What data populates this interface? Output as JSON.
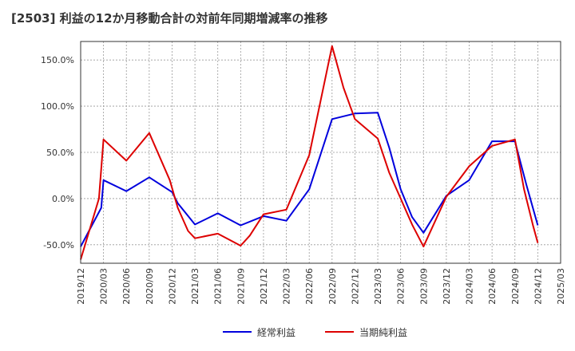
{
  "chart_data": {
    "type": "line",
    "title": "[2503]  利益の12か月移動合計の対前年同期増減率の推移",
    "xlabel": "",
    "ylabel": "",
    "ylim": [
      -70,
      170
    ],
    "y_ticks": [
      -50,
      0,
      50,
      100,
      150
    ],
    "y_tick_labels": [
      "-50.0%",
      "0.0%",
      "50.0%",
      "100.0%",
      "150.0%"
    ],
    "x_ticks": [
      "2019/12",
      "2020/03",
      "2020/06",
      "2020/09",
      "2020/12",
      "2021/03",
      "2021/06",
      "2021/09",
      "2021/12",
      "2022/03",
      "2022/06",
      "2022/09",
      "2022/12",
      "2023/03",
      "2023/06",
      "2023/09",
      "2023/12",
      "2024/03",
      "2024/06",
      "2024/09",
      "2024/12",
      "2025/03"
    ],
    "legend_position": "bottom",
    "series": [
      {
        "name": "経常利益",
        "color": "#0000dd",
        "x": [
          0,
          0.9,
          1,
          2,
          3,
          4,
          4.25,
          5,
          6,
          7,
          8,
          9,
          10,
          11,
          12,
          13,
          13.5,
          14,
          14.5,
          15,
          16,
          17,
          18,
          19,
          19.5,
          20
        ],
        "values": [
          -52,
          -10,
          20,
          8,
          23,
          7,
          -5,
          -28,
          -16,
          -29,
          -19,
          -24,
          10,
          86,
          92,
          93,
          55,
          10,
          -20,
          -37,
          3,
          20,
          62,
          62,
          15,
          -29
        ]
      },
      {
        "name": "当期純利益",
        "color": "#dd0000",
        "x": [
          0,
          0.8,
          1,
          2,
          3,
          3.9,
          4.25,
          4.7,
          5,
          6,
          7,
          7.4,
          8,
          9,
          10,
          11,
          11.5,
          12,
          13,
          13.5,
          14,
          14.5,
          15,
          16,
          17,
          18,
          19,
          19.4,
          19.8,
          20
        ],
        "values": [
          -66,
          0,
          64,
          41,
          71,
          20,
          -10,
          -35,
          -43,
          -38,
          -51,
          -40,
          -17,
          -12,
          47,
          165,
          120,
          86,
          65,
          28,
          0,
          -28,
          -52,
          2,
          35,
          57,
          64,
          10,
          -30,
          -48
        ]
      }
    ]
  }
}
